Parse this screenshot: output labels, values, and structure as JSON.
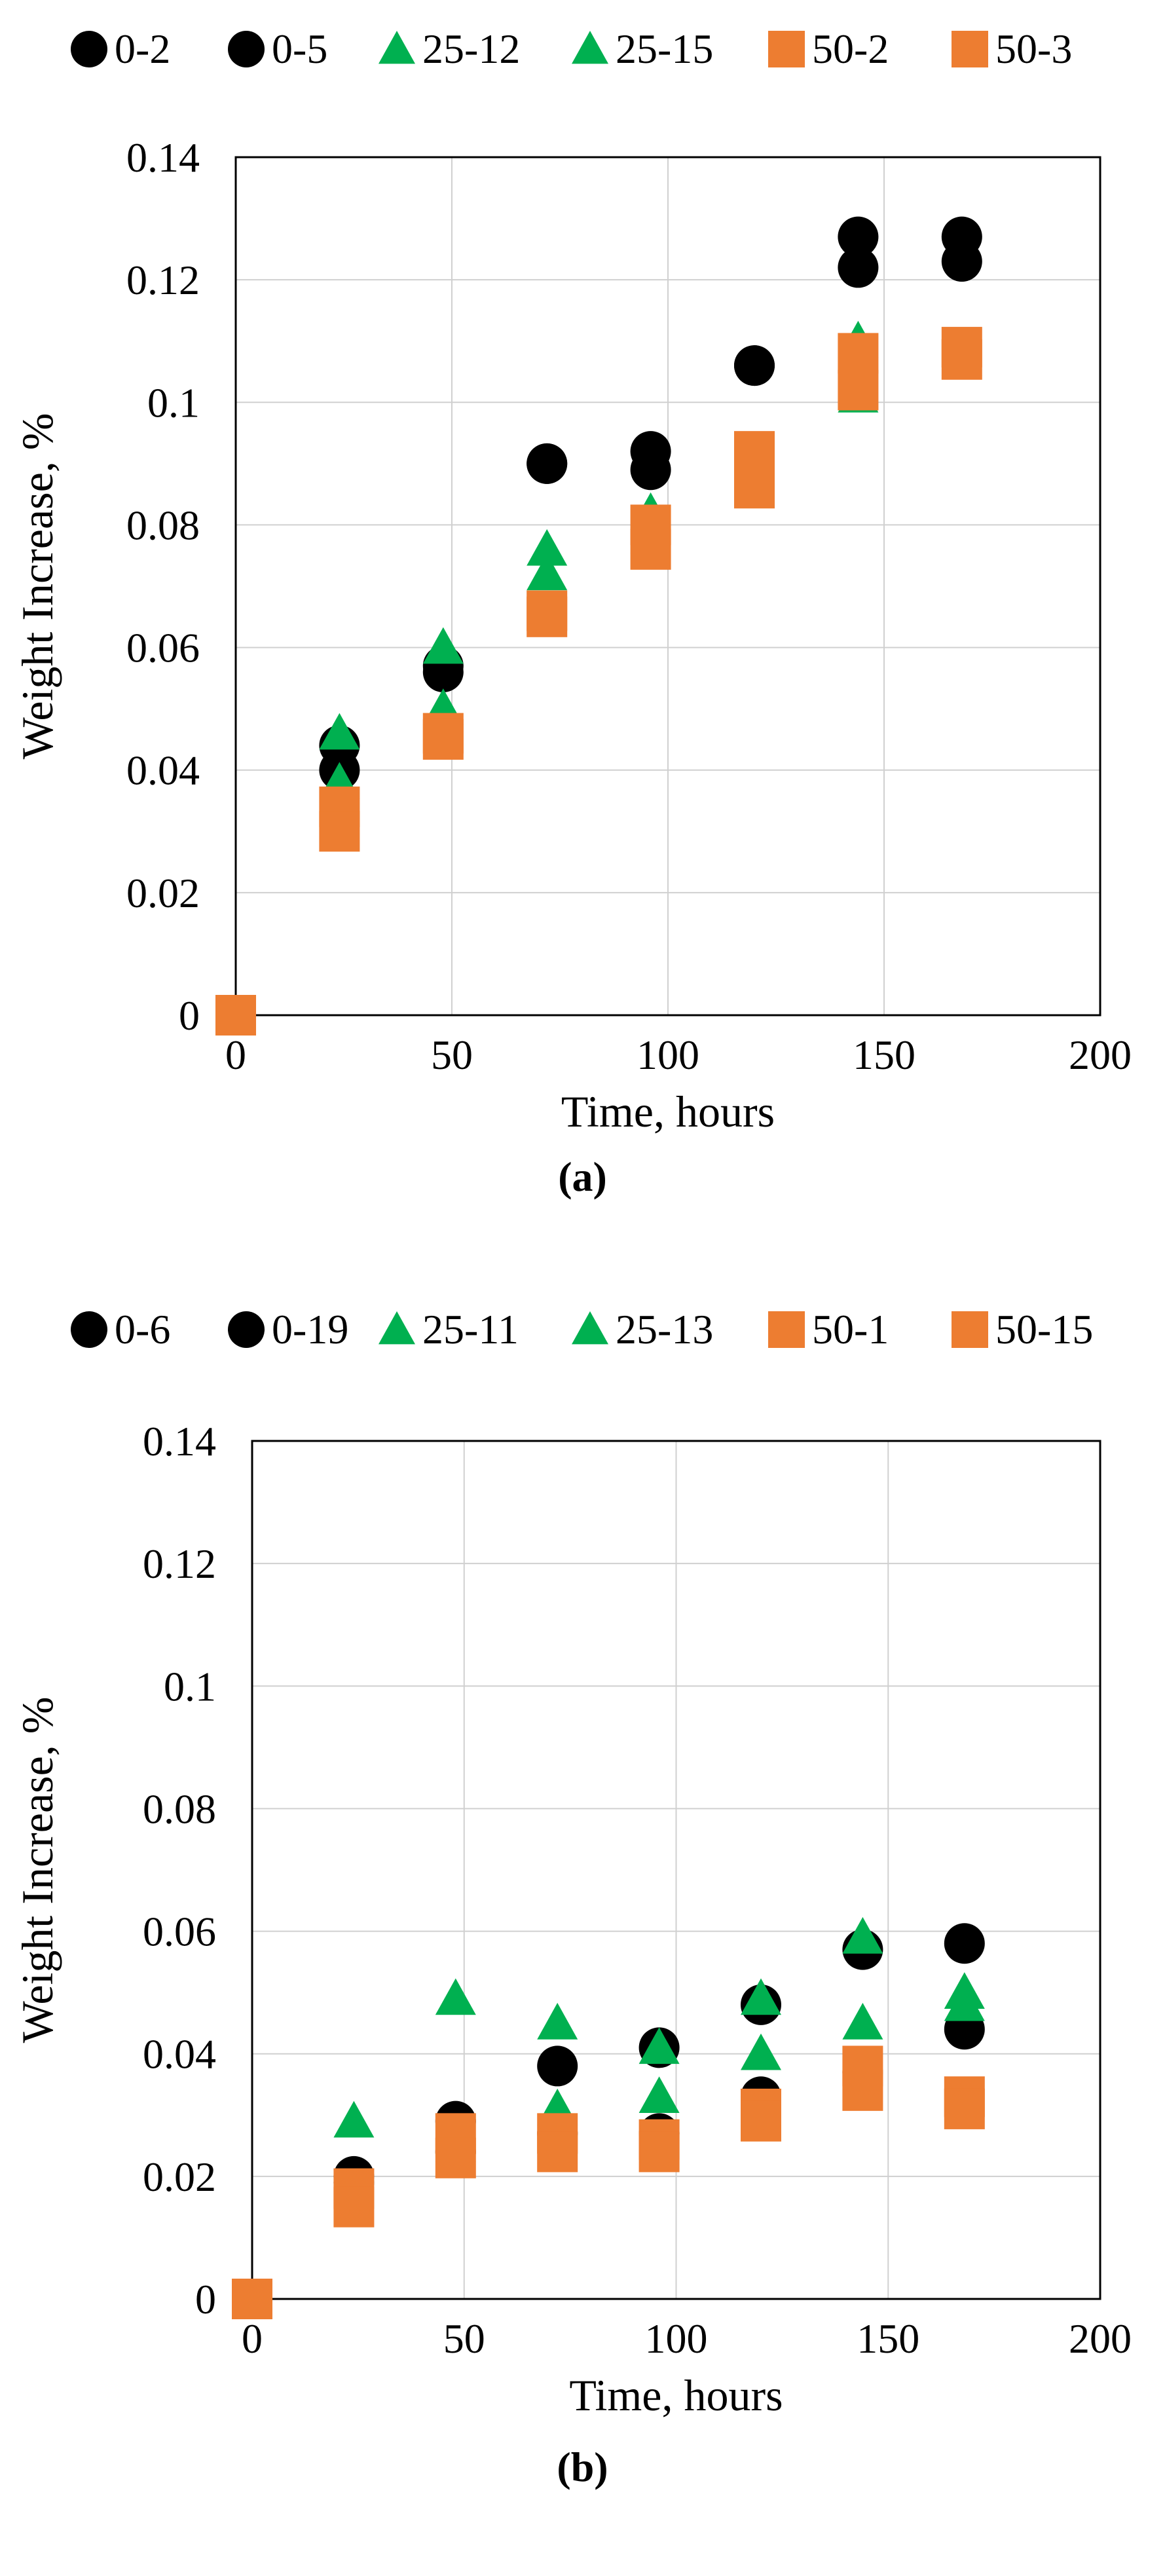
{
  "colors": {
    "black": "#000000",
    "green": "#00b050",
    "orange": "#ed7d31",
    "grid": "#d0d0d0",
    "axis": "#000000"
  },
  "chart_data": [
    {
      "type": "scatter",
      "caption": "(a)",
      "xlabel": "Time, hours",
      "ylabel": "Weight Increase, %",
      "xlim": [
        0,
        200
      ],
      "ylim": [
        0,
        0.14
      ],
      "xticks": [
        0,
        50,
        100,
        150,
        200
      ],
      "yticks": [
        0,
        0.02,
        0.04,
        0.06,
        0.08,
        0.1,
        0.12,
        0.14
      ],
      "xtick_labels": [
        "0",
        "50",
        "100",
        "150",
        "200"
      ],
      "ytick_labels": [
        "0",
        "0.02",
        "0.04",
        "0.06",
        "0.08",
        "0.1",
        "0.12",
        "0.14"
      ],
      "grid": true,
      "legend_position": "top",
      "series": [
        {
          "name": "0-2",
          "marker": "circle",
          "color": "#000000",
          "points": [
            [
              0,
              0
            ],
            [
              24,
              0.044
            ],
            [
              48,
              0.057
            ],
            [
              72,
              0.09
            ],
            [
              96,
              0.089
            ],
            [
              120,
              0.106
            ],
            [
              144,
              0.122
            ],
            [
              168,
              0.123
            ]
          ]
        },
        {
          "name": "0-5",
          "marker": "circle",
          "color": "#000000",
          "points": [
            [
              0,
              0
            ],
            [
              24,
              0.04
            ],
            [
              48,
              0.056
            ],
            [
              72,
              0.09
            ],
            [
              96,
              0.092
            ],
            [
              120,
              0.106
            ],
            [
              144,
              0.127
            ],
            [
              168,
              0.127
            ]
          ]
        },
        {
          "name": "25-12",
          "marker": "triangle",
          "color": "#00b050",
          "points": [
            [
              0,
              0
            ],
            [
              24,
              0.046
            ],
            [
              48,
              0.06
            ],
            [
              72,
              0.076
            ],
            [
              96,
              0.082
            ],
            [
              120,
              0.088
            ],
            [
              144,
              0.101
            ],
            [
              168,
              0.108
            ]
          ]
        },
        {
          "name": "25-15",
          "marker": "triangle",
          "color": "#00b050",
          "points": [
            [
              0,
              0
            ],
            [
              24,
              0.038
            ],
            [
              48,
              0.05
            ],
            [
              72,
              0.072
            ],
            [
              96,
              0.078
            ],
            [
              120,
              0.09
            ],
            [
              144,
              0.11
            ],
            [
              168,
              0.107
            ]
          ]
        },
        {
          "name": "50-2",
          "marker": "square",
          "color": "#ed7d31",
          "points": [
            [
              0,
              0
            ],
            [
              24,
              0.034
            ],
            [
              48,
              0.046
            ],
            [
              72,
              0.066
            ],
            [
              96,
              0.08
            ],
            [
              120,
              0.092
            ],
            [
              144,
              0.108
            ],
            [
              168,
              0.109
            ]
          ]
        },
        {
          "name": "50-3",
          "marker": "square",
          "color": "#ed7d31",
          "points": [
            [
              0,
              0
            ],
            [
              24,
              0.03
            ],
            [
              48,
              0.045
            ],
            [
              72,
              0.065
            ],
            [
              96,
              0.076
            ],
            [
              120,
              0.086
            ],
            [
              144,
              0.102
            ],
            [
              168,
              0.107
            ]
          ]
        }
      ]
    },
    {
      "type": "scatter",
      "caption": "(b)",
      "xlabel": "Time, hours",
      "ylabel": "Weight Increase, %",
      "xlim": [
        0,
        200
      ],
      "ylim": [
        0,
        0.14
      ],
      "xticks": [
        0,
        50,
        100,
        150,
        200
      ],
      "yticks": [
        0,
        0.02,
        0.04,
        0.06,
        0.08,
        0.1,
        0.12,
        0.14
      ],
      "xtick_labels": [
        "0",
        "50",
        "100",
        "150",
        "200"
      ],
      "ytick_labels": [
        "0",
        "0.02",
        "0.04",
        "0.06",
        "0.08",
        "0.1",
        "0.12",
        "0.14"
      ],
      "grid": true,
      "legend_position": "top",
      "series": [
        {
          "name": "0-6",
          "marker": "circle",
          "color": "#000000",
          "points": [
            [
              0,
              0
            ],
            [
              24,
              0.02
            ],
            [
              48,
              0.029
            ],
            [
              72,
              0.038
            ],
            [
              96,
              0.041
            ],
            [
              120,
              0.048
            ],
            [
              144,
              0.057
            ],
            [
              168,
              0.058
            ]
          ]
        },
        {
          "name": "0-19",
          "marker": "circle",
          "color": "#000000",
          "points": [
            [
              0,
              0
            ],
            [
              24,
              0.019
            ],
            [
              48,
              0.024
            ],
            [
              72,
              0.027
            ],
            [
              96,
              0.027
            ],
            [
              120,
              0.033
            ],
            [
              144,
              0.037
            ],
            [
              168,
              0.044
            ]
          ]
        },
        {
          "name": "25-11",
          "marker": "triangle",
          "color": "#00b050",
          "points": [
            [
              0,
              0
            ],
            [
              24,
              0.029
            ],
            [
              48,
              0.049
            ],
            [
              72,
              0.045
            ],
            [
              96,
              0.041
            ],
            [
              120,
              0.049
            ],
            [
              144,
              0.059
            ],
            [
              168,
              0.05
            ]
          ]
        },
        {
          "name": "25-13",
          "marker": "triangle",
          "color": "#00b050",
          "points": [
            [
              0,
              0
            ],
            [
              24,
              0.018
            ],
            [
              48,
              0.025
            ],
            [
              72,
              0.031
            ],
            [
              96,
              0.033
            ],
            [
              120,
              0.04
            ],
            [
              144,
              0.045
            ],
            [
              168,
              0.048
            ]
          ]
        },
        {
          "name": "50-1",
          "marker": "square",
          "color": "#ed7d31",
          "points": [
            [
              0,
              0
            ],
            [
              24,
              0.018
            ],
            [
              48,
              0.027
            ],
            [
              72,
              0.027
            ],
            [
              96,
              0.026
            ],
            [
              120,
              0.031
            ],
            [
              144,
              0.038
            ],
            [
              168,
              0.033
            ]
          ]
        },
        {
          "name": "50-15",
          "marker": "square",
          "color": "#ed7d31",
          "points": [
            [
              0,
              0
            ],
            [
              24,
              0.015
            ],
            [
              48,
              0.023
            ],
            [
              72,
              0.024
            ],
            [
              96,
              0.024
            ],
            [
              120,
              0.029
            ],
            [
              144,
              0.034
            ],
            [
              168,
              0.031
            ]
          ]
        }
      ]
    }
  ]
}
